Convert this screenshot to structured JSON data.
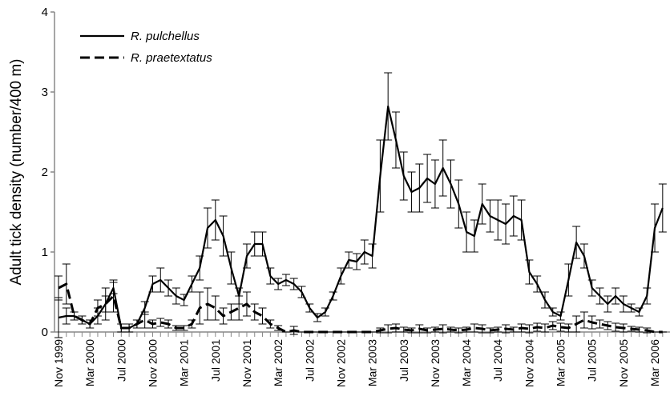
{
  "chart_data": {
    "type": "line",
    "y_label": "Adult tick density (number/400 m)",
    "categories": [
      "Nov 1999",
      null,
      null,
      null,
      "Mar 2000",
      null,
      null,
      null,
      "Jul 2000",
      null,
      null,
      null,
      "Nov 2000",
      null,
      null,
      null,
      "Mar 2001",
      null,
      null,
      null,
      "Jul 2001",
      null,
      null,
      null,
      "Nov 2001",
      null,
      null,
      null,
      "Mar 2002",
      null,
      null,
      null,
      "Jul 2002",
      null,
      null,
      null,
      "Nov 2002",
      null,
      null,
      null,
      "Mar 2003",
      null,
      null,
      null,
      "Jul 2003",
      null,
      null,
      null,
      "Nov 2003",
      null,
      null,
      null,
      "Mar 2004",
      null,
      null,
      null,
      "Jul 2004",
      null,
      null,
      null,
      "Nov 2004",
      null,
      null,
      null,
      "Mar 2005",
      null,
      null,
      null,
      "Jul 2005",
      null,
      null,
      null,
      "Nov 2005",
      null,
      null,
      null,
      "Mar 2006",
      null
    ],
    "series": [
      {
        "name": "R. pulchellus",
        "color": "#000000",
        "line_style": "solid",
        "values": [
          0.18,
          0.2,
          0.2,
          0.15,
          0.1,
          0.2,
          0.35,
          0.55,
          0.05,
          0.05,
          0.1,
          0.3,
          0.6,
          0.65,
          0.55,
          0.45,
          0.4,
          0.6,
          0.8,
          1.3,
          1.4,
          1.2,
          0.8,
          0.45,
          0.95,
          1.1,
          1.1,
          0.7,
          0.6,
          0.65,
          0.6,
          0.5,
          0.3,
          0.18,
          0.25,
          0.45,
          0.7,
          0.9,
          0.88,
          1.0,
          0.95,
          1.95,
          2.82,
          2.4,
          1.95,
          1.75,
          1.8,
          1.92,
          1.85,
          2.05,
          1.85,
          1.6,
          1.25,
          1.2,
          1.6,
          1.45,
          1.4,
          1.35,
          1.45,
          1.4,
          0.75,
          0.6,
          0.4,
          0.25,
          0.2,
          0.65,
          1.12,
          0.95,
          0.55,
          0.45,
          0.35,
          0.45,
          0.35,
          0.3,
          0.25,
          0.45,
          1.3,
          1.55
        ],
        "errors": [
          0.25,
          0.1,
          0.05,
          0.05,
          0.05,
          0.1,
          0.1,
          0.07,
          0.05,
          0.05,
          0.05,
          0.08,
          0.1,
          0.15,
          0.1,
          0.1,
          0.07,
          0.1,
          0.15,
          0.25,
          0.25,
          0.25,
          0.2,
          0.1,
          0.15,
          0.15,
          0.15,
          0.1,
          0.07,
          0.07,
          0.07,
          0.07,
          0.05,
          0.05,
          0.05,
          0.05,
          0.1,
          0.1,
          0.1,
          0.15,
          0.15,
          0.45,
          0.42,
          0.35,
          0.3,
          0.25,
          0.3,
          0.3,
          0.3,
          0.35,
          0.3,
          0.3,
          0.25,
          0.2,
          0.25,
          0.2,
          0.25,
          0.25,
          0.25,
          0.25,
          0.15,
          0.1,
          0.1,
          0.05,
          0.05,
          0.2,
          0.2,
          0.15,
          0.1,
          0.1,
          0.1,
          0.1,
          0.1,
          0.05,
          0.05,
          0.1,
          0.3,
          0.3
        ]
      },
      {
        "name": "R. praetextatus",
        "color": "#000000",
        "line_style": "dashed",
        "values": [
          0.55,
          0.6,
          0.2,
          0.15,
          0.1,
          0.3,
          0.35,
          0.45,
          0.05,
          0.05,
          0.1,
          0.15,
          0.1,
          0.12,
          0.1,
          0.05,
          0.05,
          0.1,
          0.3,
          0.35,
          0.3,
          0.2,
          0.25,
          0.3,
          0.35,
          0.25,
          0.2,
          0.1,
          0.05,
          0,
          0.02,
          0,
          0,
          0,
          0,
          0,
          0,
          0,
          0,
          0,
          0,
          0.02,
          0.04,
          0.05,
          0.03,
          0.02,
          0.04,
          0.02,
          0.03,
          0.04,
          0.03,
          0.02,
          0.03,
          0.05,
          0.04,
          0.02,
          0.03,
          0.04,
          0.03,
          0.05,
          0.04,
          0.06,
          0.05,
          0.08,
          0.06,
          0.05,
          0.1,
          0.15,
          0.12,
          0.1,
          0.08,
          0.06,
          0.05,
          0.04,
          0.03,
          0.02,
          0,
          0
        ],
        "errors": [
          0.15,
          0.25,
          0.05,
          0.05,
          0.05,
          0.1,
          0.2,
          0.2,
          0.05,
          0.05,
          0.05,
          0.1,
          0.05,
          0.05,
          0.05,
          0.03,
          0.03,
          0.05,
          0.2,
          0.2,
          0.15,
          0.1,
          0.1,
          0.15,
          0.15,
          0.1,
          0.1,
          0.05,
          0.03,
          0,
          0.05,
          0,
          0,
          0,
          0,
          0,
          0,
          0,
          0,
          0,
          0,
          0.03,
          0.05,
          0.05,
          0.03,
          0.03,
          0.05,
          0.03,
          0.03,
          0.05,
          0.03,
          0.03,
          0.03,
          0.05,
          0.05,
          0.03,
          0.03,
          0.05,
          0.03,
          0.05,
          0.05,
          0.05,
          0.05,
          0.05,
          0.05,
          0.05,
          0.1,
          0.1,
          0.08,
          0.05,
          0.05,
          0.05,
          0.05,
          0.03,
          0.03,
          0.03,
          0,
          0
        ]
      }
    ],
    "ylim": [
      0,
      4
    ],
    "yticks": [
      0,
      1,
      2,
      3,
      4
    ],
    "grid": false,
    "legend": "upper left"
  }
}
